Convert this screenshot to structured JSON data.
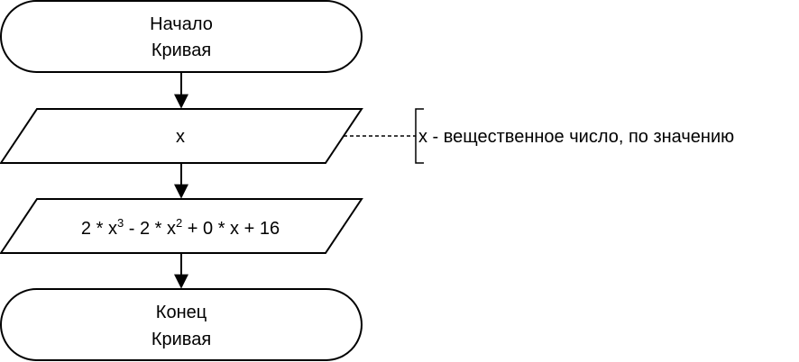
{
  "diagram": {
    "start": {
      "line1": "Начало",
      "line2": "Кривая"
    },
    "input": {
      "label": "x"
    },
    "comment": {
      "text": "x - вещественное число, по значению"
    },
    "process": {
      "t1": "2 * x",
      "sup1": "3",
      "t2": " - 2 * x",
      "sup2": "2",
      "t3": " + 0 * x + 16"
    },
    "end": {
      "line1": "Конец",
      "line2": "Кривая"
    }
  }
}
